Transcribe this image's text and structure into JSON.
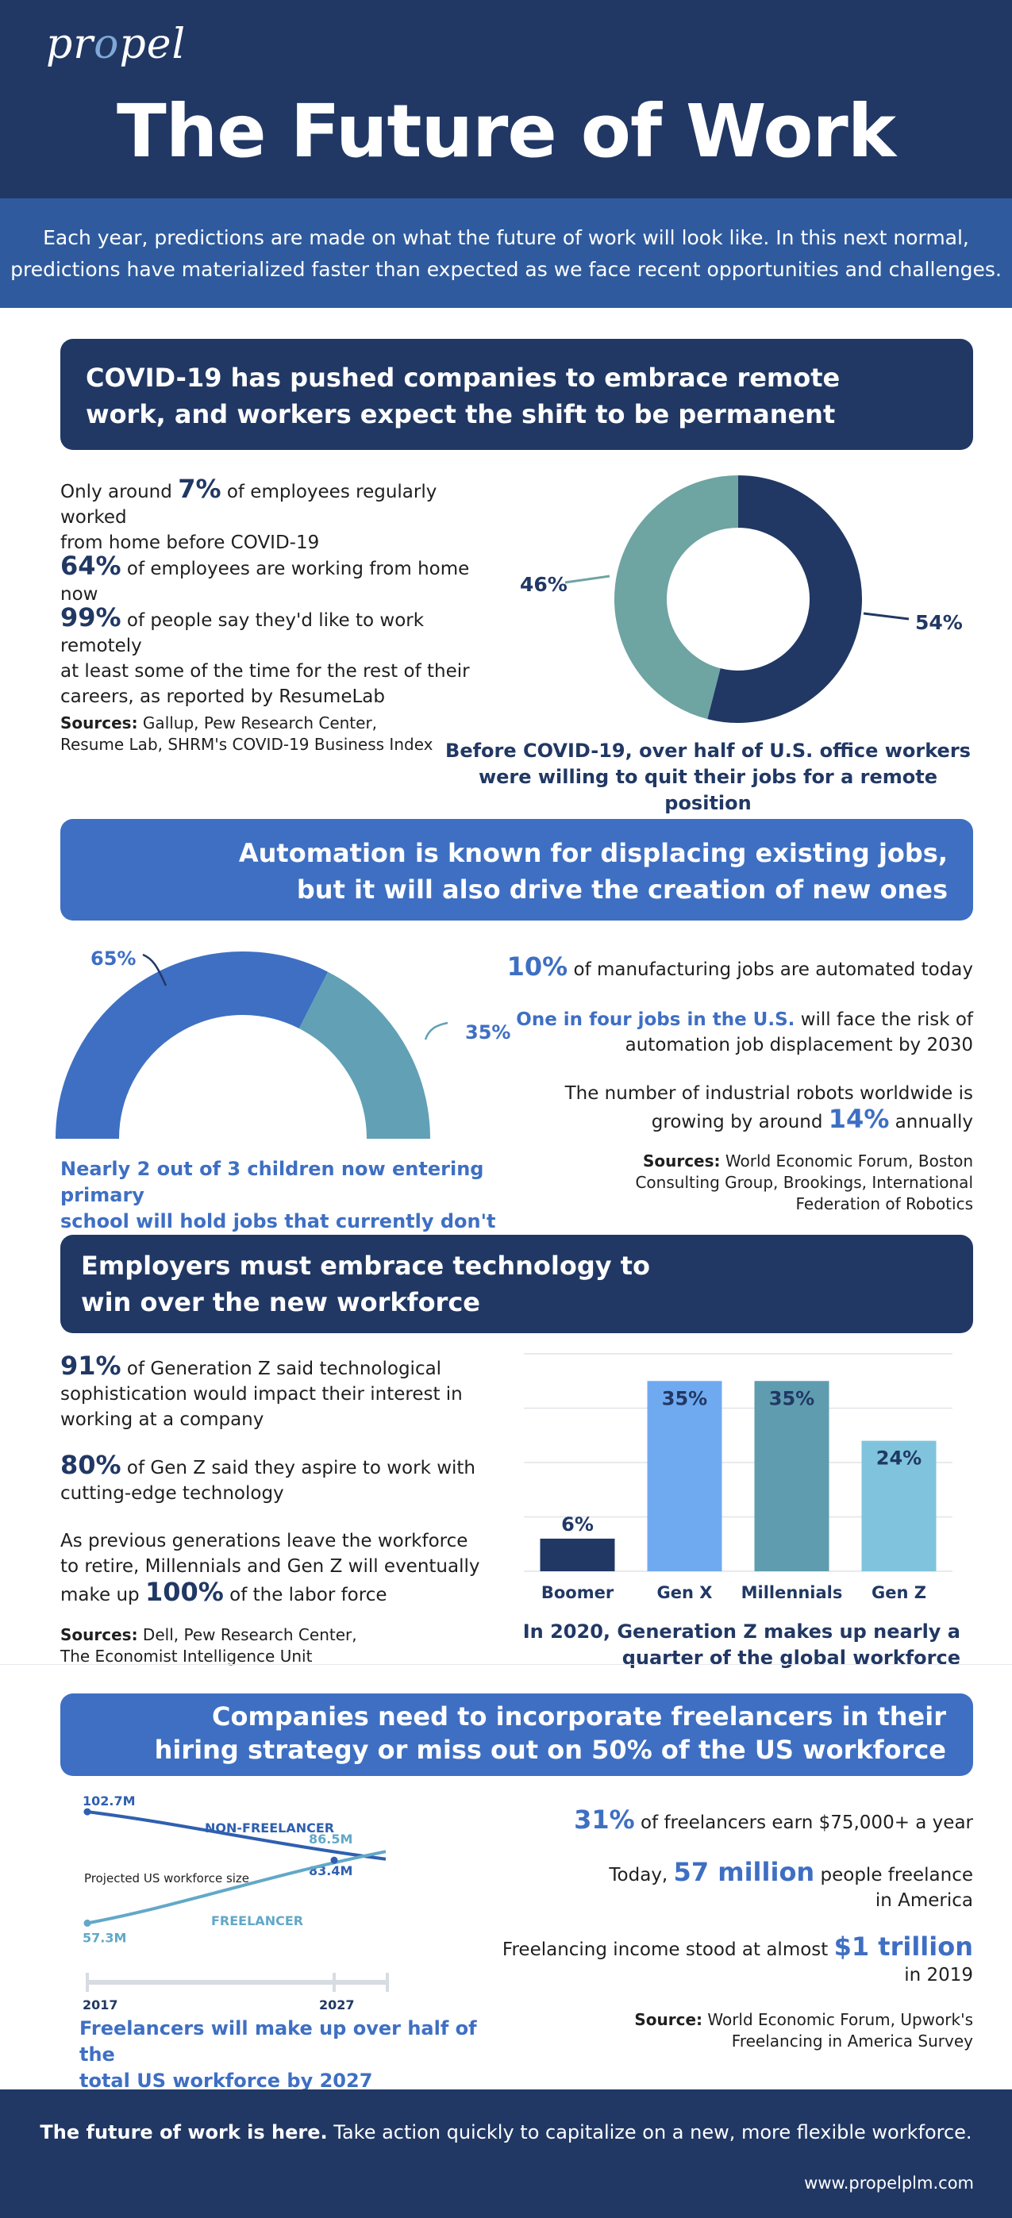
{
  "header": {
    "logo_pre": "pr",
    "logo_o": "o",
    "logo_post": "pel",
    "title": "The Future of Work",
    "intro_line1": "Each year, predictions are made on what the future of work will look like. In this next normal,",
    "intro_line2": "predictions have materialized faster than expected as we face recent opportunities and challenges."
  },
  "s1": {
    "banner_line1": "COVID-19 has pushed companies to embrace remote",
    "banner_line2": "work, and workers expect the shift to be permanent",
    "stat1_pre": "Only around ",
    "stat1_num": "7%",
    "stat1_post": " of employees regularly worked",
    "stat1_line2": "from home before COVID-19",
    "stat2_num": "64%",
    "stat2_post": " of employees are working from home now",
    "stat3_num": "99%",
    "stat3_post": " of people say they'd like to work remotely",
    "stat3_line2": "at least some of the time for the rest of their",
    "stat3_line3": "careers, as reported by ResumeLab",
    "sources_label": "Sources:",
    "sources_line1": " Gallup, Pew Research Center,",
    "sources_line2": "Resume Lab, SHRM's COVID-19 Business Index",
    "donut_label_teal": "46%",
    "donut_label_navy": "54%",
    "caption_line1": "Before COVID-19, over half of U.S. office workers",
    "caption_line2": "were willing to quit their jobs for a remote position"
  },
  "s2": {
    "banner_line1": "Automation is known for displacing existing jobs,",
    "banner_line2": "but it will also drive the creation of new ones",
    "gauge_label_blue": "65%",
    "gauge_label_teal": "35%",
    "caption_line1": "Nearly 2 out of 3 children now entering primary",
    "caption_line2": "school will hold jobs that currently don't exist",
    "stat1_num": "10%",
    "stat1_post": " of manufacturing jobs are automated today",
    "stat2_hl": "One in four jobs in the U.S.",
    "stat2_post": " will face the risk of",
    "stat2_line2": "automation job displacement by 2030",
    "stat3_line1": "The number of industrial robots worldwide is",
    "stat3_pre": "growing by around ",
    "stat3_num": "14%",
    "stat3_post": " annually",
    "sources_label": "Sources:",
    "sources_line1": " World Economic Forum, Boston",
    "sources_line2": "Consulting Group, Brookings, International",
    "sources_line3": "Federation of Robotics"
  },
  "s3": {
    "banner_line1": "Employers must embrace technology to",
    "banner_line2": "win over the new workforce",
    "stat1_num": "91%",
    "stat1_post": " of Generation Z said technological",
    "stat1_line2": "sophistication would impact their interest in",
    "stat1_line3": "working at a company",
    "stat2_num": "80%",
    "stat2_post": " of Gen Z said they aspire to work with",
    "stat2_line2": "cutting-edge technology",
    "stat3_line1": "As previous generations leave the workforce",
    "stat3_line2": "to retire, Millennials and Gen Z will eventually",
    "stat3_pre": "make up ",
    "stat3_num": "100%",
    "stat3_post": " of the labor force",
    "sources_label": "Sources:",
    "sources_line1": " Dell, Pew Research Center,",
    "sources_line2": "The Economist Intelligence Unit",
    "caption_line1": "In 2020, Generation Z makes up nearly a",
    "caption_line2": "quarter of the global workforce"
  },
  "s4": {
    "banner_line1": "Companies need to incorporate freelancers in their",
    "banner_line2": "hiring strategy or miss out on 50% of the US workforce",
    "caption_line1": "Freelancers will make up over half of the",
    "caption_line2": "total US workforce by 2027",
    "stat1_num": "31%",
    "stat1_post": " of freelancers earn $75,000+ a year",
    "stat2_pre": "Today, ",
    "stat2_num": "57 million",
    "stat2_post": " people freelance",
    "stat2_line2": "in America",
    "stat3_pre": "Freelancing income stood at almost ",
    "stat3_num": "$1 trillion",
    "stat3_line2": "in 2019",
    "source_label": "Source:",
    "source_line1": " World Economic Forum, Upwork's",
    "source_line2": "Freelancing in America Survey"
  },
  "footer": {
    "bold": "The future of work is here.",
    "text": " Take action quickly to capitalize on a new, more flexible workforce.",
    "url": "www.propelplm.com"
  },
  "colors": {
    "navy": "#213864",
    "blue": "#3e6fc3",
    "teal": "#6ea4a2",
    "gauge_teal": "#62a0b5",
    "genx": "#6faaf0",
    "millennials": "#5f9cb0",
    "genz": "#7fc4dc",
    "freelancer": "#62a8c8",
    "non_freelancer": "#2f5fb0"
  },
  "chart_data": [
    {
      "type": "pie",
      "variant": "donut",
      "values": [
        54,
        46
      ],
      "labels": [
        "54%",
        "46%"
      ],
      "colors": [
        "#213864",
        "#6ea4a2"
      ]
    },
    {
      "type": "pie",
      "variant": "half-donut",
      "values": [
        65,
        35
      ],
      "labels": [
        "65%",
        "35%"
      ],
      "colors": [
        "#3e6fc3",
        "#62a0b5"
      ]
    },
    {
      "type": "bar",
      "categories": [
        "Boomer",
        "Gen X",
        "Millennials",
        "Gen Z"
      ],
      "values": [
        6,
        35,
        35,
        24
      ],
      "value_labels": [
        "6%",
        "35%",
        "35%",
        "24%"
      ],
      "ylim": [
        0,
        40
      ],
      "grid": true,
      "colors": [
        "#213864",
        "#6faaf0",
        "#5f9cb0",
        "#7fc4dc"
      ]
    },
    {
      "type": "line",
      "x_ticks": [
        "2017",
        "2027"
      ],
      "axis_label": "Projected US workforce size",
      "series": [
        {
          "name": "NON-FREELANCER",
          "start_label": "102.7M",
          "end_label": "83.4M",
          "start": 102.7,
          "end": 83.4
        },
        {
          "name": "FREELANCER",
          "start_label": "57.3M",
          "end_label": "86.5M",
          "start": 57.3,
          "end": 86.5
        }
      ]
    }
  ]
}
